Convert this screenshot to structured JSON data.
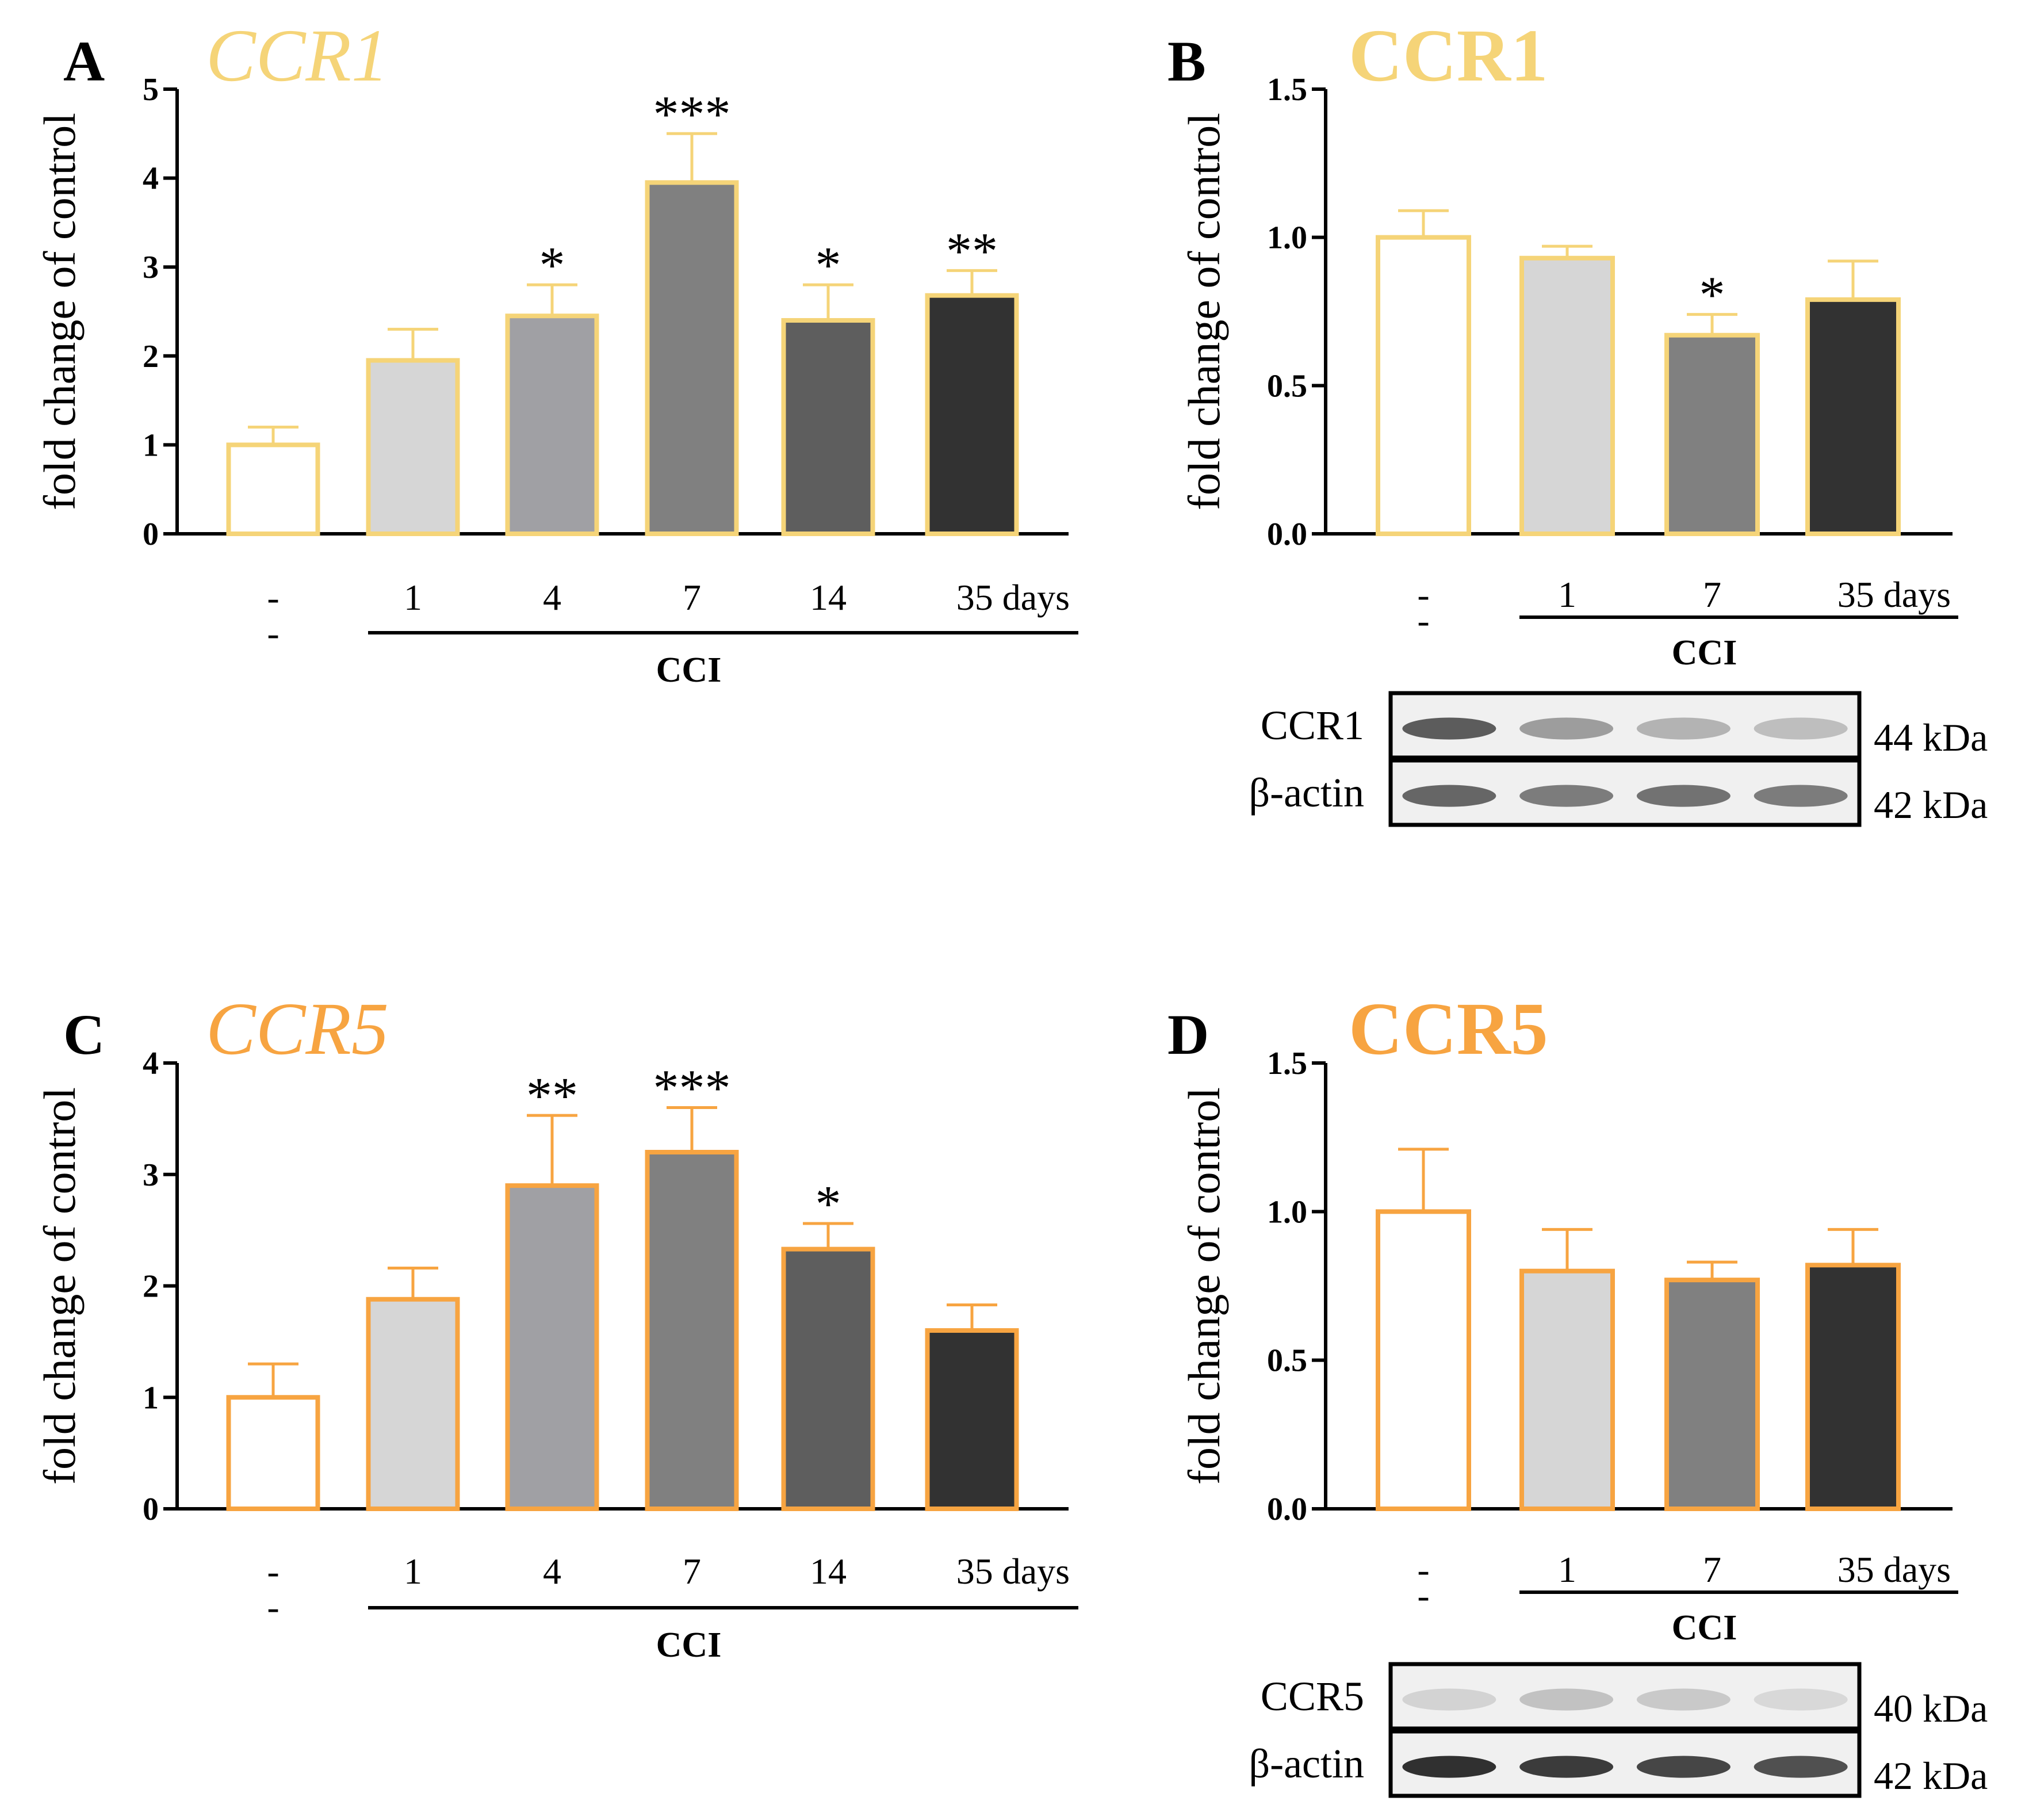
{
  "colors": {
    "ccr1": "#F5D478",
    "ccr5": "#F7A441",
    "axis": "#000000",
    "bar_fills": [
      "#FFFFFF",
      "#D6D6D6",
      "#A0A0A4",
      "#808080",
      "#5E5E5E",
      "#323232"
    ]
  },
  "chart_data": [
    {
      "id": "A",
      "type": "bar",
      "letter": "A",
      "title": "CCR1",
      "title_style": "italic",
      "theme": "ccr1",
      "ylabel": "fold change of control",
      "ylim": [
        0,
        5
      ],
      "yticks": [
        "0",
        "1",
        "2",
        "3",
        "4",
        "5"
      ],
      "ytick_values": [
        0,
        1,
        2,
        3,
        4,
        5
      ],
      "categories": [
        "-",
        "1",
        "4",
        "7",
        "14",
        "35 days"
      ],
      "values": [
        1.0,
        1.95,
        2.45,
        3.95,
        2.4,
        2.68
      ],
      "errors": [
        0.2,
        0.35,
        0.35,
        0.55,
        0.4,
        0.28
      ],
      "significance": [
        "",
        "",
        "*",
        "***",
        "*",
        "**"
      ],
      "fill_index": [
        0,
        1,
        2,
        3,
        4,
        5
      ],
      "group_label": "CCI",
      "second_row_marker": "-"
    },
    {
      "id": "B",
      "type": "bar",
      "letter": "B",
      "title": "CCR1",
      "title_style": "bold",
      "theme": "ccr1",
      "ylabel": "fold change of control",
      "ylim": [
        0,
        1.5
      ],
      "yticks": [
        "0.0",
        "0.5",
        "1.0",
        "1.5"
      ],
      "ytick_values": [
        0,
        0.5,
        1.0,
        1.5
      ],
      "categories": [
        "-",
        "1",
        "7",
        "35 days"
      ],
      "values": [
        1.0,
        0.93,
        0.67,
        0.79
      ],
      "errors": [
        0.09,
        0.04,
        0.07,
        0.13
      ],
      "significance": [
        "",
        "",
        "*",
        ""
      ],
      "fill_index": [
        0,
        1,
        3,
        5
      ],
      "group_label": "CCI",
      "second_row_marker": "-",
      "blot": {
        "protein": "CCR1",
        "protein_kda": "44 kDa",
        "control": "β-actin",
        "control_kda": "42 kDa",
        "protein_band_darkness": [
          0.75,
          0.45,
          0.35,
          0.3
        ],
        "control_band_darkness": [
          0.7,
          0.6,
          0.65,
          0.6
        ]
      }
    },
    {
      "id": "C",
      "type": "bar",
      "letter": "C",
      "title": "CCR5",
      "title_style": "italic",
      "theme": "ccr5",
      "ylabel": "fold change of control",
      "ylim": [
        0,
        4
      ],
      "yticks": [
        "0",
        "1",
        "2",
        "3",
        "4"
      ],
      "ytick_values": [
        0,
        1,
        2,
        3,
        4
      ],
      "categories": [
        "-",
        "1",
        "4",
        "7",
        "14",
        "35 days"
      ],
      "values": [
        1.0,
        1.88,
        2.9,
        3.2,
        2.33,
        1.6
      ],
      "errors": [
        0.3,
        0.28,
        0.63,
        0.4,
        0.23,
        0.23
      ],
      "significance": [
        "",
        "",
        "**",
        "***",
        "*",
        ""
      ],
      "fill_index": [
        0,
        1,
        2,
        3,
        4,
        5
      ],
      "group_label": "CCI",
      "second_row_marker": "-"
    },
    {
      "id": "D",
      "type": "bar",
      "letter": "D",
      "title": "CCR5",
      "title_style": "bold",
      "theme": "ccr5",
      "ylabel": "fold change of control",
      "ylim": [
        0,
        1.5
      ],
      "yticks": [
        "0.0",
        "0.5",
        "1.0",
        "1.5"
      ],
      "ytick_values": [
        0,
        0.5,
        1.0,
        1.5
      ],
      "categories": [
        "-",
        "1",
        "7",
        "35 days"
      ],
      "values": [
        1.0,
        0.8,
        0.77,
        0.82
      ],
      "errors": [
        0.21,
        0.14,
        0.06,
        0.12
      ],
      "significance": [
        "",
        "",
        "",
        ""
      ],
      "fill_index": [
        0,
        1,
        3,
        5
      ],
      "group_label": "CCI",
      "second_row_marker": "-",
      "blot": {
        "protein": "CCR5",
        "protein_kda": "40 kDa",
        "control": "β-actin",
        "control_kda": "42 kDa",
        "protein_band_darkness": [
          0.2,
          0.28,
          0.25,
          0.18
        ],
        "control_band_darkness": [
          0.95,
          0.9,
          0.85,
          0.8
        ]
      }
    }
  ]
}
